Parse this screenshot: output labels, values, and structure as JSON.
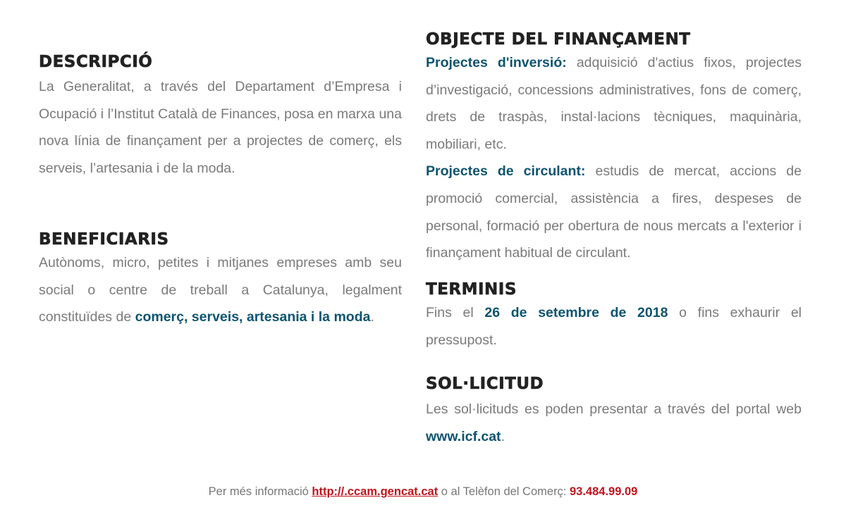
{
  "descripcio": {
    "title": "DESCRIPCIÓ",
    "text": "La Generalitat, a través del Departament d’Empresa i Ocupació i l’Institut Català de Finances, posa en marxa una nova línia de finançament per a projectes de comerç, els serveis, l’artesania i de la moda."
  },
  "beneficiaris": {
    "title": "BENEFICIARIS",
    "text": "Autònoms, micro, petites i mitjanes empreses amb seu social o centre de treball a Catalunya, legalment constituïdes de ",
    "bold": "comerç, serveis, artesania i la moda",
    "end": "."
  },
  "objecte": {
    "title": "OBJECTE DEL FINANÇAMENT",
    "inversio_label": "Projectes d'inversió:",
    "inversio_text": " adquisició d'actius fixos, projectes d’investigació, concessions administratives, fons de comerç, drets de traspàs, instal·lacions tècniques, maquinària, mobiliari, etc.",
    "circulant_label": "Projectes de circulant:",
    "circulant_text": " estudis de mercat, accions de promoció comercial, assistència a fires, despeses de personal, formació per obertura de nous mercats a l'exterior i finançament habitual de circulant."
  },
  "terminis": {
    "title": "TERMINIS",
    "pre": "Fins el ",
    "date": "26 de setembre de 2018",
    "post": " o fins exhaurir el pressupost."
  },
  "sollicitud": {
    "title": "SOL·LICITUD",
    "pre": "Les sol·licituds es poden presentar a través del portal web ",
    "link": "www.icf.cat",
    "post": "."
  },
  "footer": {
    "pre": "Per més informació ",
    "link": "http://.ccam.gencat.cat",
    "mid": " o al Telèfon del Comerç: ",
    "phone": "93.484.99.09"
  },
  "colors": {
    "accent_blue": "#0d5470",
    "accent_red": "#c0141c",
    "body_text": "#7a7a7a",
    "heading": "#222222"
  }
}
